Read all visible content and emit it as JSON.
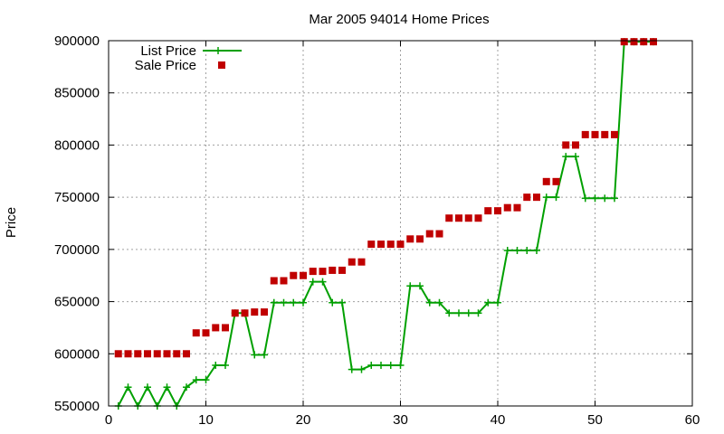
{
  "chart_data": {
    "type": "line",
    "title": "Mar 2005 94014 Home Prices",
    "xlabel": "",
    "ylabel": "Price",
    "xlim": [
      0,
      60
    ],
    "ylim": [
      550000,
      900000
    ],
    "xticks": [
      0,
      10,
      20,
      30,
      40,
      50,
      60
    ],
    "yticks": [
      550000,
      600000,
      650000,
      700000,
      750000,
      800000,
      850000,
      900000
    ],
    "grid": true,
    "legend_position": "top-left",
    "series": [
      {
        "name": "List Price",
        "style": "line+cross",
        "color": "#00a000",
        "x": [
          1,
          2,
          3,
          4,
          5,
          6,
          7,
          8,
          9,
          10,
          11,
          12,
          13,
          14,
          15,
          16,
          17,
          18,
          19,
          20,
          21,
          22,
          23,
          24,
          25,
          26,
          27,
          28,
          29,
          30,
          31,
          32,
          33,
          34,
          35,
          36,
          37,
          38,
          39,
          40,
          41,
          42,
          43,
          44,
          45,
          46,
          47,
          48,
          49,
          50,
          51,
          52,
          53,
          54,
          55,
          56
        ],
        "y": [
          550000,
          568000,
          550000,
          568000,
          550000,
          568000,
          550000,
          568000,
          575000,
          575000,
          589000,
          589000,
          639000,
          639000,
          599000,
          599000,
          649000,
          649000,
          649000,
          649000,
          669000,
          669000,
          649000,
          649000,
          585000,
          585000,
          589000,
          589000,
          589000,
          589000,
          665000,
          665000,
          649000,
          649000,
          639000,
          639000,
          639000,
          639000,
          649000,
          649000,
          699000,
          699000,
          699000,
          699000,
          750000,
          750000,
          789000,
          789000,
          749000,
          749000,
          749000,
          749000,
          899000,
          899000,
          899000,
          899000
        ]
      },
      {
        "name": "Sale Price",
        "style": "square-markers",
        "color": "#c00000",
        "x": [
          1,
          2,
          3,
          4,
          5,
          6,
          7,
          8,
          9,
          10,
          11,
          12,
          13,
          14,
          15,
          16,
          17,
          18,
          19,
          20,
          21,
          22,
          23,
          24,
          25,
          26,
          27,
          28,
          29,
          30,
          31,
          32,
          33,
          34,
          35,
          36,
          37,
          38,
          39,
          40,
          41,
          42,
          43,
          44,
          45,
          46,
          47,
          48,
          49,
          50,
          51,
          52,
          53,
          54,
          55,
          56
        ],
        "y": [
          600000,
          600000,
          600000,
          600000,
          600000,
          600000,
          600000,
          600000,
          620000,
          620000,
          625000,
          625000,
          639000,
          639000,
          640000,
          640000,
          670000,
          670000,
          675000,
          675000,
          679000,
          679000,
          680000,
          680000,
          688000,
          688000,
          705000,
          705000,
          705000,
          705000,
          710000,
          710000,
          715000,
          715000,
          730000,
          730000,
          730000,
          730000,
          737000,
          737000,
          740000,
          740000,
          750000,
          750000,
          765000,
          765000,
          800000,
          800000,
          810000,
          810000,
          810000,
          810000,
          899000,
          899000,
          899000,
          899000
        ]
      }
    ]
  }
}
